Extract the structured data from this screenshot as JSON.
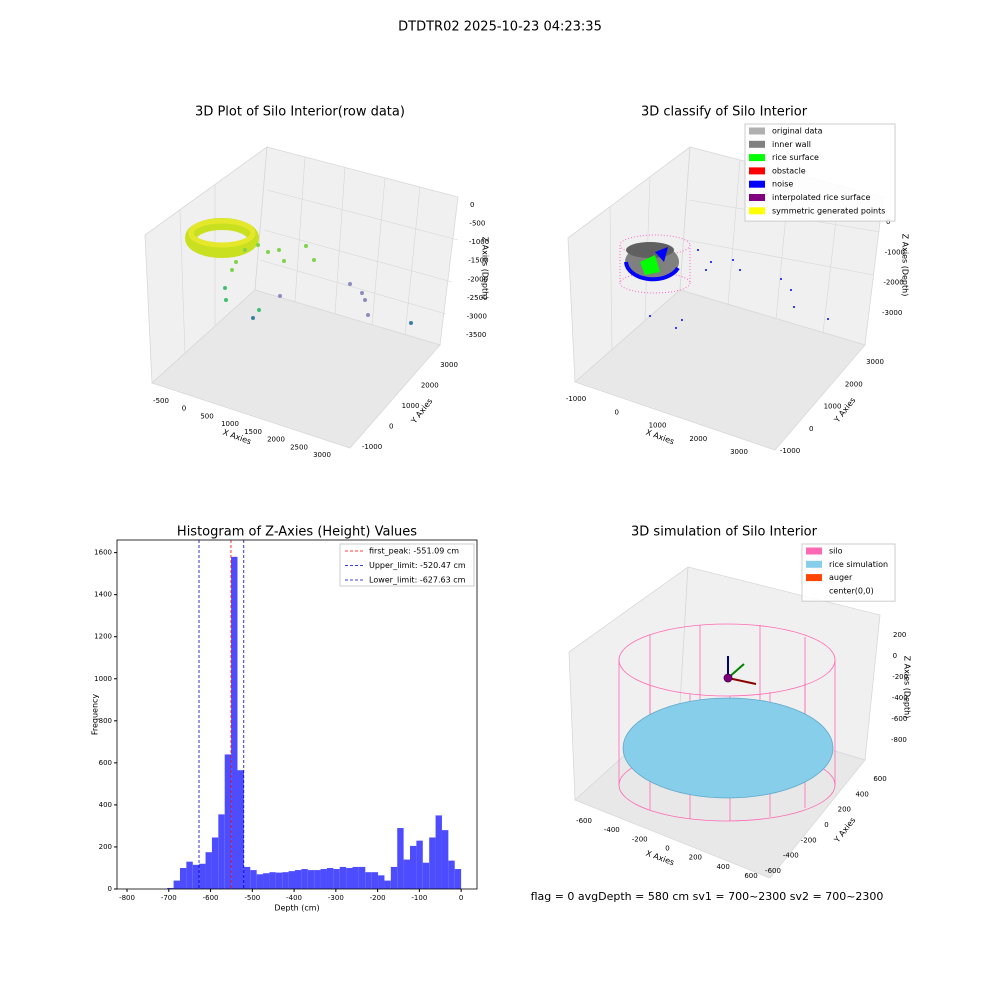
{
  "suptitle": "DTDTR02 2025-10-23 04:23:35",
  "status": "flag = 0     avgDepth = 580 cm  sv1 = 700~2300  sv2 = 700~2300",
  "chart_data": [
    {
      "type": "scatter3d",
      "title": "3D Plot of Silo Interior(row data)",
      "xlabel": "X Axies",
      "ylabel": "Y Axies",
      "zlabel": "Z Axies (Depth)",
      "xticks": [
        -500,
        0,
        500,
        1000,
        1500,
        2000,
        2500,
        3000
      ],
      "yticks": [
        -1000,
        0,
        1000,
        2000,
        3000
      ],
      "zticks": [
        0,
        -500,
        -1000,
        -1500,
        -2000,
        -2500,
        -3000,
        -3500
      ]
    },
    {
      "type": "scatter3d",
      "title": "3D classify of Silo Interior",
      "xlabel": "X Axies",
      "ylabel": "Y Axies",
      "zlabel": "Z Axies (Depth)",
      "xticks": [
        -1000,
        0,
        1000,
        2000,
        3000
      ],
      "yticks": [
        -1000,
        0,
        1000,
        2000,
        3000
      ],
      "zticks": [
        0,
        -1000,
        -2000,
        -3000
      ],
      "legend": [
        {
          "name": "original data",
          "color": "#b0b0b0"
        },
        {
          "name": "inner wall",
          "color": "#808080"
        },
        {
          "name": "rice surface",
          "color": "#00ff00"
        },
        {
          "name": "obstacle",
          "color": "#ff0000"
        },
        {
          "name": "noise",
          "color": "#0000ff"
        },
        {
          "name": "interpolated rice surface",
          "color": "#800080"
        },
        {
          "name": "symmetric generated points",
          "color": "#ffff00"
        }
      ]
    },
    {
      "type": "histogram",
      "title": "Histogram of Z-Axies (Height) Values",
      "xlabel": "Depth (cm)",
      "ylabel": "Frequency",
      "color": "#4d4dff",
      "bins": [
        -703.8,
        -688.5,
        -673.2,
        -657.9,
        -642.6,
        -627.3,
        -612,
        -596.7,
        -581.4,
        -566.1,
        -550.8,
        -535.5,
        -520.2,
        -504.9,
        -489.6,
        -474.3,
        -459,
        -443.7,
        -428.4,
        -413.1,
        -397.8,
        -382.5,
        -367.2,
        -351.9,
        -336.6,
        -321.3,
        -306,
        -290.7,
        -275.4,
        -260.1,
        -244.8,
        -229.5,
        -214.2,
        -198.9,
        -183.6,
        -168.3,
        -153,
        -137.7,
        -122.4,
        -107.1,
        -91.8,
        -76.5,
        -61.2,
        -45.9,
        -30.6,
        -15.3,
        0
      ],
      "counts": [
        5,
        40,
        100,
        130,
        115,
        120,
        175,
        245,
        355,
        640,
        1580,
        565,
        105,
        90,
        70,
        75,
        80,
        78,
        80,
        85,
        90,
        95,
        90,
        90,
        95,
        100,
        95,
        105,
        100,
        105,
        105,
        80,
        80,
        65,
        40,
        105,
        290,
        140,
        205,
        230,
        125,
        245,
        350,
        280,
        135,
        95
      ],
      "xlim": [
        -824,
        38
      ],
      "ylim": [
        0,
        1660
      ],
      "xticks": [
        -800,
        -700,
        -600,
        -500,
        -400,
        -300,
        -200,
        -100,
        0
      ],
      "yticks": [
        0,
        200,
        400,
        600,
        800,
        1000,
        1200,
        1400,
        1600
      ],
      "lines": [
        {
          "name": "first_peak: -551.09 cm",
          "value": -551.09,
          "color": "#ff0000"
        },
        {
          "name": "Upper_limit: -520.47 cm",
          "value": -520.47,
          "color": "#0000cc"
        },
        {
          "name": "Lower_limit: -627.63 cm",
          "value": -627.63,
          "color": "#0000cc"
        }
      ]
    },
    {
      "type": "surface3d",
      "title": "3D simulation of Silo Interior",
      "xlabel": "X Axies",
      "ylabel": "Y Axies",
      "zlabel": "Z Axies (Depth)",
      "xticks": [
        -600,
        -400,
        -200,
        0,
        200,
        400,
        600
      ],
      "yticks": [
        -600,
        -400,
        -200,
        0,
        200,
        400,
        600
      ],
      "zticks": [
        200,
        0,
        -200,
        -400,
        -600,
        -800
      ],
      "legend": [
        {
          "name": "silo",
          "color": "#ff69b4"
        },
        {
          "name": "rice simulation",
          "color": "#87ceeb"
        },
        {
          "name": "auger",
          "color": "#ff4500"
        },
        {
          "name": "center(0,0)",
          "color": "#ffffff"
        }
      ]
    }
  ]
}
